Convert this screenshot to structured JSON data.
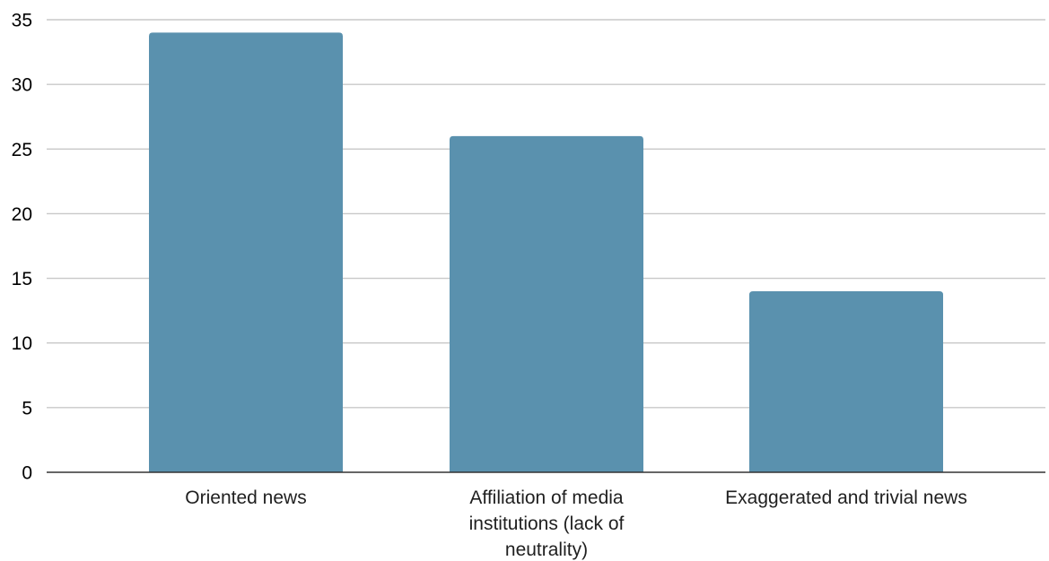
{
  "chart_data": {
    "type": "bar",
    "categories": [
      "Oriented news",
      "Affiliation of media institutions (lack of neutrality)",
      "Exaggerated and trivial news"
    ],
    "category_label_lines": [
      [
        "Oriented news"
      ],
      [
        "Affiliation of media",
        "institutions (lack of",
        "neutrality)"
      ],
      [
        "Exaggerated and trivial news"
      ]
    ],
    "values": [
      34,
      26,
      14
    ],
    "ylim": [
      0,
      35
    ],
    "yticks": [
      "0",
      "5",
      "10",
      "15",
      "20",
      "25",
      "30",
      "35"
    ],
    "title": "",
    "xlabel": "",
    "ylabel": "",
    "grid": true,
    "legend": "none",
    "bar_color": "#5a91ae"
  }
}
